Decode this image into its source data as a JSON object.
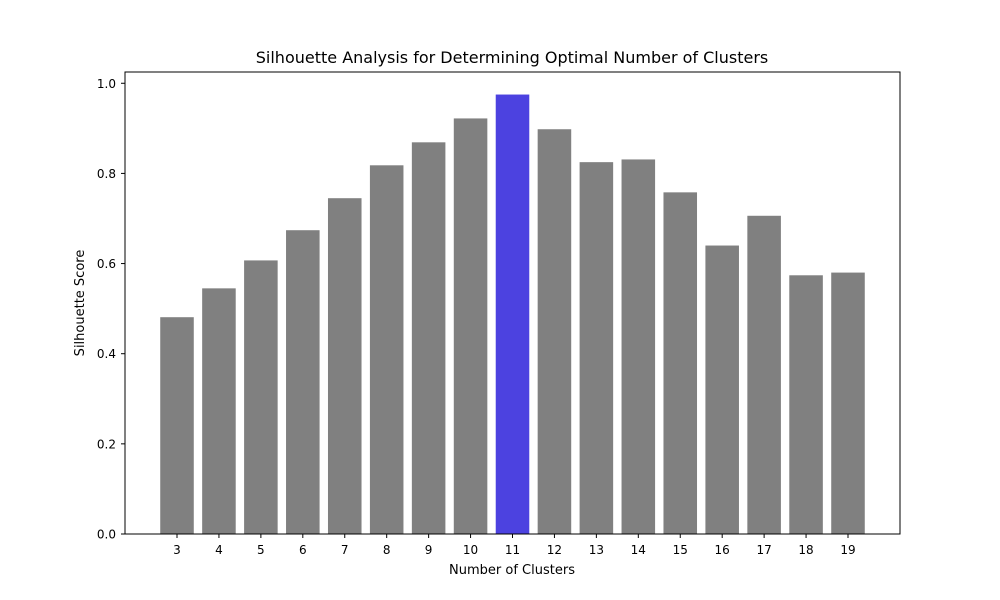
{
  "chart_data": {
    "type": "bar",
    "title": "Silhouette Analysis for Determining Optimal Number of Clusters",
    "xlabel": "Number of Clusters",
    "ylabel": "Silhouette Score",
    "categories": [
      "3",
      "4",
      "5",
      "6",
      "7",
      "8",
      "9",
      "10",
      "11",
      "12",
      "13",
      "14",
      "15",
      "16",
      "17",
      "18",
      "19"
    ],
    "values": [
      0.481,
      0.545,
      0.607,
      0.674,
      0.745,
      0.818,
      0.869,
      0.922,
      0.975,
      0.898,
      0.825,
      0.831,
      0.758,
      0.64,
      0.706,
      0.574,
      0.58
    ],
    "ylim": [
      0,
      1.025
    ],
    "yticks": [
      "0.0",
      "0.2",
      "0.4",
      "0.6",
      "0.8",
      "1.0"
    ],
    "grid": false,
    "legend": "none",
    "highlight_index": 8,
    "colors": {
      "bar": "#808080",
      "highlight": "#4c42e0"
    }
  }
}
